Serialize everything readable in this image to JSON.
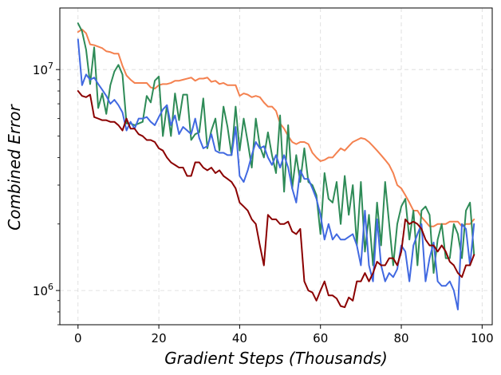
{
  "chart_data": {
    "type": "line",
    "title": "",
    "xlabel": "Gradient Steps (Thousands)",
    "ylabel": "Combined Error",
    "xlim": [
      -4.5,
      102.5
    ],
    "ylim": [
      700000,
      19000000
    ],
    "yscale": "log",
    "grid": true,
    "x_ticks": [
      0,
      20,
      40,
      60,
      80,
      100
    ],
    "x_tick_labels": [
      "0",
      "20",
      "40",
      "60",
      "80",
      "100"
    ],
    "y_ticks": [
      1000000,
      10000000
    ],
    "y_tick_base": "10",
    "y_tick_exponents": [
      "6",
      "7"
    ],
    "x": [
      0,
      1,
      2,
      3,
      4,
      5,
      6,
      7,
      8,
      9,
      10,
      11,
      12,
      13,
      14,
      15,
      16,
      17,
      18,
      19,
      20,
      21,
      22,
      23,
      24,
      25,
      26,
      27,
      28,
      29,
      30,
      31,
      32,
      33,
      34,
      35,
      36,
      37,
      38,
      39,
      40,
      41,
      42,
      43,
      44,
      45,
      46,
      47,
      48,
      49,
      50,
      51,
      52,
      53,
      54,
      55,
      56,
      57,
      58,
      59,
      60,
      61,
      62,
      63,
      64,
      65,
      66,
      67,
      68,
      69,
      70,
      71,
      72,
      73,
      74,
      75,
      76,
      77,
      78,
      79,
      80,
      81,
      82,
      83,
      84,
      85,
      86,
      87,
      88,
      89,
      90,
      91,
      92,
      93,
      94,
      95,
      96,
      97,
      98
    ],
    "series": [
      {
        "color": "#f4814f",
        "values": [
          14800000,
          15200000,
          14600000,
          13000000,
          12900000,
          12700000,
          12500000,
          12100000,
          12000000,
          11800000,
          11800000,
          10400000,
          9400000,
          9000000,
          8700000,
          8700000,
          8700000,
          8700000,
          8300000,
          8200000,
          8500000,
          8600000,
          8600000,
          8700000,
          8900000,
          8900000,
          9000000,
          9100000,
          9200000,
          8900000,
          9100000,
          9100000,
          9200000,
          8800000,
          8900000,
          8600000,
          8700000,
          8500000,
          8500000,
          8500000,
          7600000,
          7800000,
          7700000,
          7500000,
          7600000,
          7500000,
          7100000,
          6800000,
          6800000,
          6500000,
          5700000,
          5400000,
          5000000,
          4700000,
          4600000,
          4700000,
          4700000,
          4600000,
          4200000,
          4000000,
          3850000,
          3900000,
          4000000,
          4000000,
          4200000,
          4400000,
          4300000,
          4500000,
          4700000,
          4800000,
          4900000,
          4850000,
          4700000,
          4500000,
          4300000,
          4100000,
          3900000,
          3700000,
          3400000,
          3000000,
          2900000,
          2700000,
          2500000,
          2300000,
          2300000,
          2150000,
          2050000,
          1950000,
          1950000,
          2000000,
          2000000,
          2000000,
          2050000,
          2050000,
          2050000,
          1950000,
          2000000,
          2000000,
          2100000
        ]
      },
      {
        "color": "#2e8b57",
        "values": [
          16200000,
          14900000,
          12300000,
          8600000,
          12600000,
          6700000,
          7800000,
          6300000,
          8500000,
          9800000,
          10500000,
          9500000,
          5700000,
          5700000,
          5600000,
          5700000,
          5800000,
          7600000,
          7100000,
          8900000,
          9300000,
          5000000,
          6900000,
          5000000,
          7800000,
          5900000,
          7700000,
          7700000,
          4800000,
          5100000,
          5200000,
          7400000,
          4400000,
          5300000,
          6000000,
          4300000,
          6800000,
          5500000,
          4100000,
          6800000,
          4300000,
          6000000,
          4700000,
          3600000,
          6000000,
          4500000,
          4000000,
          5200000,
          4100000,
          3400000,
          6200000,
          2800000,
          5600000,
          2900000,
          4100000,
          3100000,
          4400000,
          3100000,
          3000000,
          2700000,
          1800000,
          3400000,
          2600000,
          2500000,
          3100000,
          2000000,
          3300000,
          2200000,
          3000000,
          1600000,
          3100000,
          1500000,
          2200000,
          1300000,
          2500000,
          1600000,
          3100000,
          2000000,
          1300000,
          2000000,
          2400000,
          2600000,
          1700000,
          2300000,
          1300000,
          2300000,
          2400000,
          2200000,
          1200000,
          1700000,
          2000000,
          1400000,
          1400000,
          2000000,
          1800000,
          1400000,
          2300000,
          2500000,
          1450000
        ]
      },
      {
        "color": "#4169e1",
        "values": [
          13700000,
          8500000,
          9500000,
          9000000,
          9200000,
          8600000,
          8100000,
          7600000,
          7000000,
          7300000,
          6900000,
          6400000,
          5300000,
          5800000,
          5400000,
          6000000,
          6000000,
          6100000,
          5800000,
          5600000,
          6100000,
          6600000,
          6900000,
          5600000,
          6200000,
          5100000,
          5500000,
          5300000,
          5100000,
          6000000,
          4900000,
          4400000,
          4500000,
          5100000,
          4300000,
          4200000,
          4200000,
          4100000,
          4100000,
          5500000,
          3300000,
          3100000,
          3500000,
          4100000,
          4700000,
          4400000,
          4500000,
          4000000,
          3700000,
          4100000,
          3600000,
          4100000,
          3600000,
          2900000,
          2500000,
          3500000,
          3200000,
          3200000,
          2900000,
          2600000,
          2200000,
          1700000,
          2000000,
          1700000,
          1800000,
          1700000,
          1700000,
          1750000,
          1800000,
          1600000,
          1300000,
          2300000,
          1300000,
          1100000,
          2100000,
          1300000,
          1100000,
          1200000,
          1150000,
          1250000,
          1600000,
          1500000,
          1100000,
          1600000,
          1800000,
          2000000,
          1100000,
          1400000,
          1650000,
          1100000,
          1050000,
          1050000,
          1100000,
          1000000,
          820000,
          2000000,
          1900000,
          1300000,
          2000000
        ]
      },
      {
        "color": "#8b0000",
        "values": [
          8000000,
          7600000,
          7500000,
          7700000,
          6100000,
          6000000,
          5900000,
          5900000,
          5800000,
          5800000,
          5600000,
          5300000,
          6000000,
          5400000,
          5400000,
          5100000,
          5000000,
          4800000,
          4800000,
          4700000,
          4400000,
          4300000,
          4000000,
          3800000,
          3700000,
          3600000,
          3600000,
          3300000,
          3300000,
          3800000,
          3800000,
          3600000,
          3500000,
          3600000,
          3400000,
          3500000,
          3300000,
          3200000,
          3100000,
          2900000,
          2500000,
          2400000,
          2300000,
          2100000,
          2000000,
          1600000,
          1300000,
          2200000,
          2100000,
          2100000,
          2000000,
          2000000,
          2050000,
          1850000,
          1800000,
          1900000,
          1100000,
          1000000,
          980000,
          900000,
          1000000,
          1100000,
          950000,
          950000,
          920000,
          850000,
          840000,
          930000,
          900000,
          1100000,
          1100000,
          1200000,
          1100000,
          1200000,
          1350000,
          1300000,
          1300000,
          1400000,
          1400000,
          1300000,
          1500000,
          2100000,
          2000000,
          2050000,
          2000000,
          1900000,
          1700000,
          1600000,
          1600000,
          1500000,
          1600000,
          1500000,
          1350000,
          1300000,
          1200000,
          1150000,
          1300000,
          1300000,
          1450000
        ]
      }
    ]
  }
}
